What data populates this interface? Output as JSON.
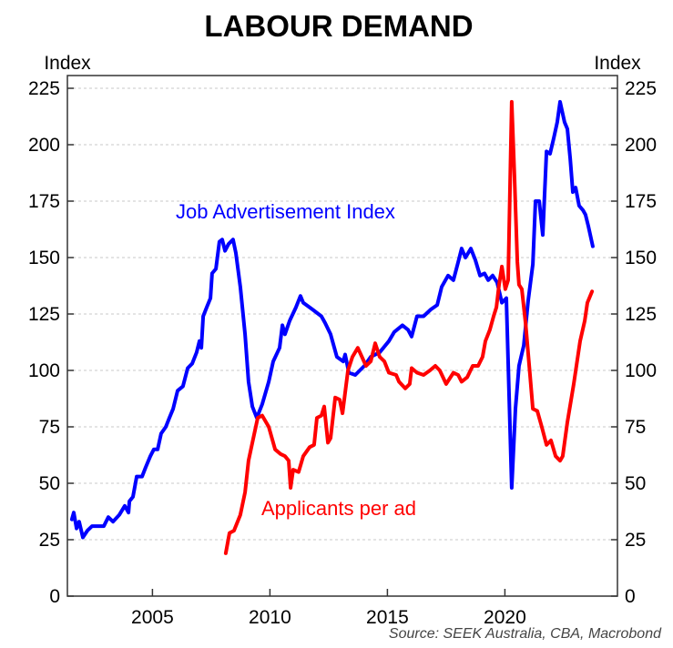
{
  "chart_data": {
    "type": "line",
    "title": "LABOUR DEMAND",
    "ylabel_left": "Index",
    "ylabel_right": "Index",
    "source": "Source: SEEK Australia, CBA, Macrobond",
    "xlim": [
      2001.38,
      2024.79
    ],
    "ylim": [
      0,
      225
    ],
    "x_ticks": [
      2005,
      2010,
      2015,
      2020
    ],
    "y_ticks": [
      0,
      25,
      50,
      75,
      100,
      125,
      150,
      175,
      200,
      225
    ],
    "grid": "horizontal dotted",
    "colors": {
      "job_ads": "#0000ff",
      "applicants": "#ff0000"
    },
    "series": [
      {
        "name": "Job Advertisement Index",
        "color": "#0000ff",
        "points": [
          [
            2001.57,
            34
          ],
          [
            2001.65,
            37
          ],
          [
            2001.77,
            30
          ],
          [
            2001.88,
            33
          ],
          [
            2002.04,
            26
          ],
          [
            2002.23,
            29
          ],
          [
            2002.43,
            31
          ],
          [
            2002.66,
            31
          ],
          [
            2002.93,
            31
          ],
          [
            2003.12,
            35
          ],
          [
            2003.32,
            33
          ],
          [
            2003.59,
            36
          ],
          [
            2003.82,
            40
          ],
          [
            2003.98,
            37
          ],
          [
            2004.02,
            42
          ],
          [
            2004.17,
            44
          ],
          [
            2004.33,
            53
          ],
          [
            2004.56,
            53
          ],
          [
            2004.71,
            57
          ],
          [
            2004.91,
            62
          ],
          [
            2005.06,
            65
          ],
          [
            2005.22,
            65
          ],
          [
            2005.37,
            72
          ],
          [
            2005.57,
            75
          ],
          [
            2005.72,
            79
          ],
          [
            2005.88,
            83
          ],
          [
            2006.07,
            91
          ],
          [
            2006.3,
            93
          ],
          [
            2006.5,
            101
          ],
          [
            2006.69,
            103
          ],
          [
            2006.88,
            108
          ],
          [
            2007.0,
            113
          ],
          [
            2007.08,
            110
          ],
          [
            2007.16,
            124
          ],
          [
            2007.31,
            128
          ],
          [
            2007.47,
            132
          ],
          [
            2007.54,
            143
          ],
          [
            2007.7,
            145
          ],
          [
            2007.85,
            157
          ],
          [
            2007.97,
            158
          ],
          [
            2008.09,
            153
          ],
          [
            2008.24,
            156
          ],
          [
            2008.43,
            158
          ],
          [
            2008.55,
            152
          ],
          [
            2008.74,
            137
          ],
          [
            2008.94,
            116
          ],
          [
            2009.09,
            95
          ],
          [
            2009.25,
            84
          ],
          [
            2009.44,
            79
          ],
          [
            2009.67,
            85
          ],
          [
            2009.95,
            95
          ],
          [
            2010.14,
            104
          ],
          [
            2010.41,
            110
          ],
          [
            2010.53,
            120
          ],
          [
            2010.64,
            116
          ],
          [
            2010.84,
            122
          ],
          [
            2011.11,
            128
          ],
          [
            2011.3,
            133
          ],
          [
            2011.42,
            130
          ],
          [
            2011.81,
            127
          ],
          [
            2012.19,
            124
          ],
          [
            2012.35,
            121
          ],
          [
            2012.58,
            116
          ],
          [
            2012.85,
            106
          ],
          [
            2013.12,
            104
          ],
          [
            2013.2,
            107
          ],
          [
            2013.36,
            99
          ],
          [
            2013.63,
            98
          ],
          [
            2014.02,
            102
          ],
          [
            2014.29,
            106
          ],
          [
            2014.67,
            108
          ],
          [
            2015.06,
            113
          ],
          [
            2015.29,
            117
          ],
          [
            2015.64,
            120
          ],
          [
            2015.88,
            118
          ],
          [
            2016.03,
            115
          ],
          [
            2016.26,
            124
          ],
          [
            2016.54,
            124
          ],
          [
            2016.85,
            127
          ],
          [
            2017.12,
            129
          ],
          [
            2017.31,
            137
          ],
          [
            2017.58,
            142
          ],
          [
            2017.81,
            140
          ],
          [
            2018.01,
            148
          ],
          [
            2018.16,
            154
          ],
          [
            2018.32,
            150
          ],
          [
            2018.55,
            154
          ],
          [
            2018.74,
            149
          ],
          [
            2018.94,
            142
          ],
          [
            2019.13,
            143
          ],
          [
            2019.29,
            140
          ],
          [
            2019.48,
            142
          ],
          [
            2019.67,
            139
          ],
          [
            2019.87,
            130
          ],
          [
            2020.06,
            132
          ],
          [
            2020.29,
            48
          ],
          [
            2020.45,
            83
          ],
          [
            2020.6,
            102
          ],
          [
            2020.8,
            111
          ],
          [
            2020.99,
            131
          ],
          [
            2021.19,
            147
          ],
          [
            2021.3,
            175
          ],
          [
            2021.46,
            175
          ],
          [
            2021.61,
            160
          ],
          [
            2021.77,
            197
          ],
          [
            2021.92,
            196
          ],
          [
            2022.08,
            203
          ],
          [
            2022.23,
            210
          ],
          [
            2022.35,
            219
          ],
          [
            2022.54,
            210
          ],
          [
            2022.66,
            207
          ],
          [
            2022.78,
            194
          ],
          [
            2022.89,
            179
          ],
          [
            2023.01,
            181
          ],
          [
            2023.16,
            173
          ],
          [
            2023.32,
            171
          ],
          [
            2023.43,
            169
          ],
          [
            2023.55,
            164
          ],
          [
            2023.74,
            155
          ]
        ]
      },
      {
        "name": "Applicants per ad",
        "color": "#ff0000",
        "points": [
          [
            2008.12,
            19
          ],
          [
            2008.28,
            28
          ],
          [
            2008.47,
            29
          ],
          [
            2008.74,
            36
          ],
          [
            2008.94,
            46
          ],
          [
            2009.09,
            60
          ],
          [
            2009.25,
            68
          ],
          [
            2009.48,
            79
          ],
          [
            2009.67,
            80
          ],
          [
            2009.95,
            75
          ],
          [
            2010.22,
            65
          ],
          [
            2010.45,
            63
          ],
          [
            2010.64,
            62
          ],
          [
            2010.8,
            60
          ],
          [
            2010.88,
            48
          ],
          [
            2010.99,
            56
          ],
          [
            2011.22,
            55
          ],
          [
            2011.42,
            62
          ],
          [
            2011.69,
            66
          ],
          [
            2011.88,
            67
          ],
          [
            2012.0,
            79
          ],
          [
            2012.19,
            80
          ],
          [
            2012.31,
            84
          ],
          [
            2012.47,
            68
          ],
          [
            2012.58,
            70
          ],
          [
            2012.78,
            88
          ],
          [
            2012.97,
            87
          ],
          [
            2013.09,
            81
          ],
          [
            2013.32,
            100
          ],
          [
            2013.51,
            106
          ],
          [
            2013.74,
            110
          ],
          [
            2014.09,
            102
          ],
          [
            2014.29,
            104
          ],
          [
            2014.48,
            112
          ],
          [
            2014.67,
            106
          ],
          [
            2014.87,
            104
          ],
          [
            2015.06,
            99
          ],
          [
            2015.37,
            98
          ],
          [
            2015.49,
            95
          ],
          [
            2015.76,
            92
          ],
          [
            2015.95,
            94
          ],
          [
            2016.03,
            101
          ],
          [
            2016.26,
            99
          ],
          [
            2016.54,
            98
          ],
          [
            2016.81,
            100
          ],
          [
            2017.04,
            102
          ],
          [
            2017.23,
            100
          ],
          [
            2017.5,
            94
          ],
          [
            2017.81,
            99
          ],
          [
            2018.01,
            98
          ],
          [
            2018.16,
            95
          ],
          [
            2018.4,
            97
          ],
          [
            2018.63,
            102
          ],
          [
            2018.86,
            102
          ],
          [
            2019.05,
            106
          ],
          [
            2019.17,
            113
          ],
          [
            2019.36,
            118
          ],
          [
            2019.52,
            124
          ],
          [
            2019.64,
            128
          ],
          [
            2019.75,
            138
          ],
          [
            2019.87,
            146
          ],
          [
            2020.02,
            136
          ],
          [
            2020.14,
            140
          ],
          [
            2020.29,
            219
          ],
          [
            2020.41,
            185
          ],
          [
            2020.53,
            148
          ],
          [
            2020.6,
            138
          ],
          [
            2020.72,
            136
          ],
          [
            2020.88,
            121
          ],
          [
            2021.07,
            98
          ],
          [
            2021.19,
            83
          ],
          [
            2021.38,
            82
          ],
          [
            2021.57,
            75
          ],
          [
            2021.77,
            67
          ],
          [
            2021.96,
            69
          ],
          [
            2022.16,
            62
          ],
          [
            2022.35,
            60
          ],
          [
            2022.46,
            62
          ],
          [
            2022.66,
            77
          ],
          [
            2022.93,
            94
          ],
          [
            2023.2,
            113
          ],
          [
            2023.4,
            122
          ],
          [
            2023.51,
            130
          ],
          [
            2023.71,
            135
          ]
        ]
      }
    ]
  }
}
